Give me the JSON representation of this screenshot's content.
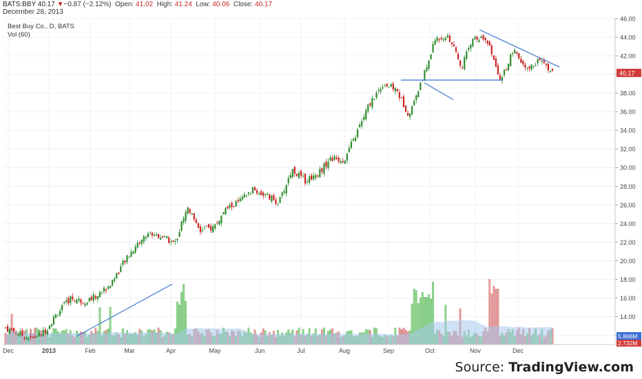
{
  "header": {
    "symbol": "BATS:BBY",
    "last": "40.17",
    "change_arrow": "▼",
    "change": "−0.87 (−2.12%)",
    "open_label": "Open:",
    "open": "41.02",
    "high_label": "High:",
    "high": "41.24",
    "low_label": "Low:",
    "low": "40.06",
    "close_label": "Close:",
    "close": "40.17",
    "date": "December 28, 2013"
  },
  "legend": {
    "series": "Best Buy Co., D, BATS",
    "volume": "Vol (60)"
  },
  "source": {
    "prefix": "Source: ",
    "brand": "TradingView.com"
  },
  "chart_data": {
    "type": "candlestick",
    "ylim": [
      11,
      46
    ],
    "y_ticks": [
      "12.00",
      "14.00",
      "16.00",
      "18.00",
      "20.00",
      "22.00",
      "24.00",
      "26.00",
      "28.00",
      "30.00",
      "32.00",
      "34.00",
      "36.00",
      "38.00",
      "40.00",
      "42.00",
      "44.00",
      "46.00"
    ],
    "x_ticks": [
      "Dec",
      "2013",
      "Feb",
      "Mar",
      "Apr",
      "May",
      "Jun",
      "Jul",
      "Aug",
      "Sep",
      "Oct",
      "Nov",
      "Dec"
    ],
    "last_price_label": "40.17",
    "volume_labels": [
      "5.866M",
      "2.732M"
    ],
    "colors": {
      "up": "#2e8b2e",
      "down": "#cc2222",
      "vol_up": "#8fd48f",
      "vol_down": "#e69a9a",
      "vol_ma": "#a8c8ec",
      "trend": "#4a7fd4",
      "grid": "#eef0f3"
    },
    "price_path": [
      [
        "Dec",
        12.8
      ],
      [
        "Dec",
        12.2
      ],
      [
        "2013",
        11.6
      ],
      [
        "2013",
        12.4
      ],
      [
        "2013",
        14.4
      ],
      [
        "Feb",
        16.0
      ],
      [
        "Feb",
        15.6
      ],
      [
        "Mar",
        16.2
      ],
      [
        "Mar",
        17.4
      ],
      [
        "Mar",
        19.6
      ],
      [
        "Mar",
        21.6
      ],
      [
        "Mar",
        23.0
      ],
      [
        "Apr",
        22.6
      ],
      [
        "Apr",
        21.8
      ],
      [
        "Apr",
        25.8
      ],
      [
        "Apr",
        23.2
      ],
      [
        "May",
        23.6
      ],
      [
        "May",
        25.6
      ],
      [
        "May",
        26.4
      ],
      [
        "Jun",
        27.6
      ],
      [
        "Jun",
        27.0
      ],
      [
        "Jul",
        26.2
      ],
      [
        "Jul",
        29.8
      ],
      [
        "Jul",
        28.6
      ],
      [
        "Aug",
        29.4
      ],
      [
        "Aug",
        31.0
      ],
      [
        "Aug",
        30.8
      ],
      [
        "Aug",
        33.8
      ],
      [
        "Sep",
        37.0
      ],
      [
        "Sep",
        39.0
      ],
      [
        "Sep",
        38.4
      ],
      [
        "Oct",
        35.6
      ],
      [
        "Oct",
        39.4
      ],
      [
        "Oct",
        43.8
      ],
      [
        "Nov",
        44.2
      ],
      [
        "Nov",
        40.8
      ],
      [
        "Nov",
        44.2
      ],
      [
        "Nov",
        43.6
      ],
      [
        "Dec",
        39.2
      ],
      [
        "Dec",
        42.6
      ],
      [
        "Dec",
        40.4
      ],
      [
        "Dec",
        41.6
      ],
      [
        "Dec",
        40.2
      ]
    ],
    "trend_lines": [
      {
        "from": [
          "Jan 22, 2013",
          11.9
        ],
        "to": [
          "Apr 2, 2013",
          17.5
        ]
      },
      {
        "from": [
          "Sep 10, 2013",
          39.4
        ],
        "to": [
          "Nov 20, 2013",
          39.4
        ]
      },
      {
        "from": [
          "Sep 27, 2013",
          39.1
        ],
        "to": [
          "Oct 17, 2013",
          37.3
        ]
      },
      {
        "from": [
          "Nov 4, 2013",
          44.8
        ],
        "to": [
          "Dec 31, 2013",
          40.8
        ]
      }
    ]
  }
}
